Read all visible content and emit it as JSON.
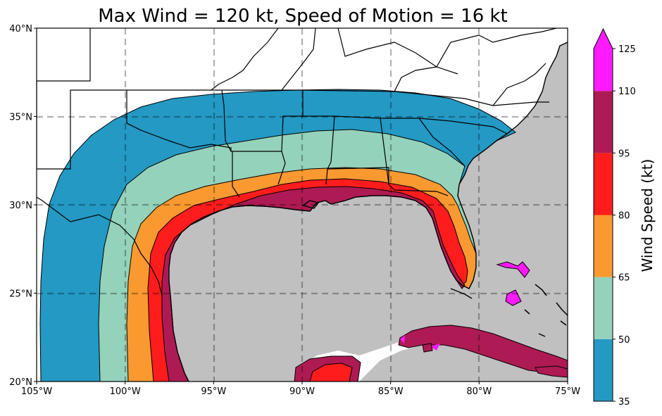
{
  "chart_data": {
    "type": "map",
    "title": "Max Wind = 120 kt, Speed of Motion = 16 kt",
    "colorbar_label": "Wind Speed (kt)",
    "colorbar_ticks": [
      "35",
      "50",
      "65",
      "80",
      "95",
      "110",
      "125"
    ],
    "colorbar_bins": [
      {
        "from": 35,
        "to": 50,
        "color": "#2399c4"
      },
      {
        "from": 50,
        "to": 65,
        "color": "#94d2bb"
      },
      {
        "from": 65,
        "to": 80,
        "color": "#f99930"
      },
      {
        "from": 80,
        "to": 95,
        "color": "#ff1c1c"
      },
      {
        "from": 95,
        "to": 110,
        "color": "#ae1a53"
      },
      {
        "from": 110,
        "to": 125,
        "color": "#ff1aff"
      }
    ],
    "colorbar_extend": "max",
    "x_ticks": [
      "105°W",
      "100°W",
      "95°W",
      "90°W",
      "85°W",
      "80°W",
      "75°W"
    ],
    "y_ticks": [
      "20°N",
      "25°N",
      "30°N",
      "35°N",
      "40°N"
    ],
    "lon_range": [
      -105,
      -75
    ],
    "lat_range": [
      20,
      40
    ],
    "grid": true,
    "ocean_color": "#c0c0c0",
    "land_color": "#ffffff"
  }
}
